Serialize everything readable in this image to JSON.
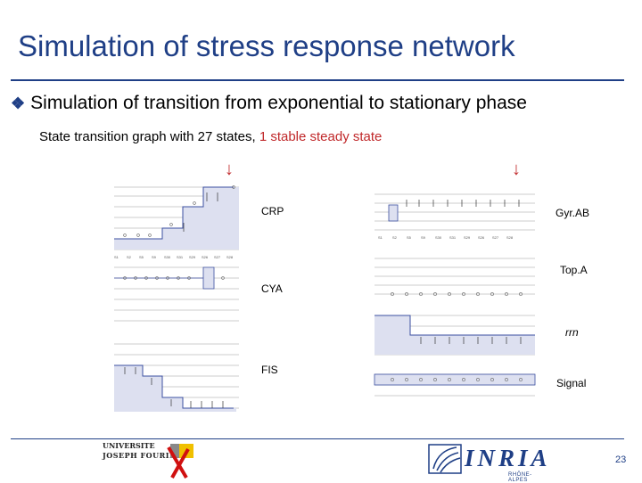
{
  "title": "Simulation of stress response network",
  "bullet": "Simulation of transition from exponential to stationary phase",
  "subtitle": {
    "prefix": "State transition graph with 27 states, ",
    "highlight": "1 stable steady state"
  },
  "panels": {
    "crp": "CRP",
    "cya": "CYA",
    "fis": "FIS",
    "gyrab": "Gyr.AB",
    "topa": "Top.A",
    "rrn": "rrn",
    "signal": "Signal"
  },
  "logos": {
    "ujf_line1": "UNIVERSITE",
    "ujf_line2": "JOSEPH FOURIER",
    "inria_word": "INRIA",
    "inria_sub": "RHÔNE-ALPES"
  },
  "page_number": "23",
  "colors": {
    "title": "#1f3f86",
    "accent": "#c0282a",
    "plot_fill": "#dde0f0",
    "plot_line": "#3b4fa0"
  }
}
